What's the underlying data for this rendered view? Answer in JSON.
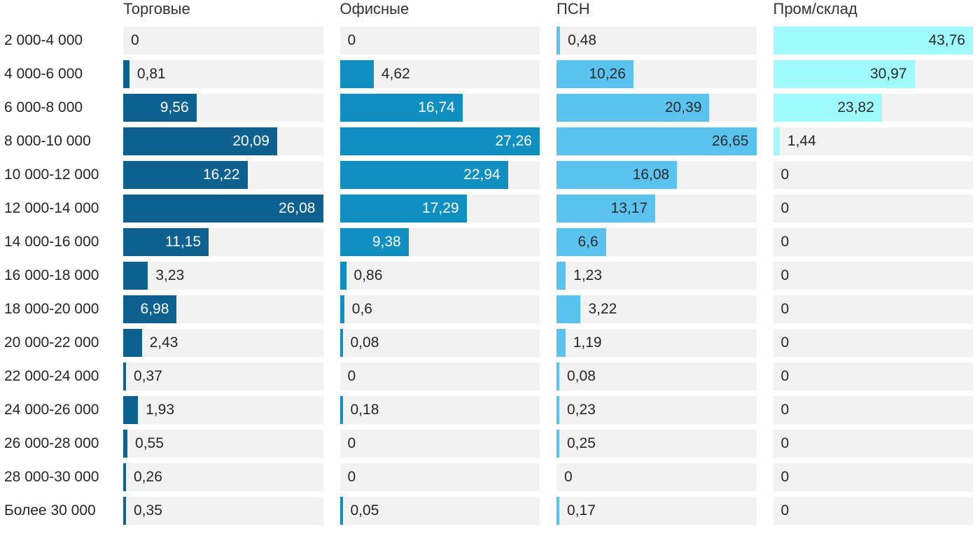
{
  "chart_data": {
    "type": "bar",
    "orientation": "horizontal",
    "scaling": "per-series-max",
    "value_decimal_separator": ",",
    "track_color": "#f2f2f2",
    "categories": [
      "2 000-4 000",
      "4 000-6 000",
      "6 000-8 000",
      "8 000-10 000",
      "10 000-12 000",
      "12 000-14 000",
      "14 000-16 000",
      "16 000-18 000",
      "18 000-20 000",
      "20 000-22 000",
      "22 000-24 000",
      "24 000-26 000",
      "26 000-28 000",
      "28 000-30 000",
      "Более 30 000"
    ],
    "series": [
      {
        "name": "Торговые",
        "bar_color": "#0e6290",
        "inside_label_color": "#ffffff",
        "axis_max": 26.08,
        "values": [
          0,
          0.81,
          9.56,
          20.09,
          16.22,
          26.08,
          11.15,
          3.23,
          6.98,
          2.43,
          0.37,
          1.93,
          0.55,
          0.26,
          0.35
        ]
      },
      {
        "name": "Офисные",
        "bar_color": "#1090c0",
        "inside_label_color": "#ffffff",
        "axis_max": 27.26,
        "values": [
          0,
          4.62,
          16.74,
          27.26,
          22.94,
          17.29,
          9.38,
          0.86,
          0.6,
          0.08,
          0,
          0.18,
          0,
          0,
          0.05
        ]
      },
      {
        "name": "ПСН",
        "bar_color": "#5ac3f0",
        "inside_label_color": "#2b2b2b",
        "axis_max": 26.65,
        "values": [
          0.48,
          10.26,
          20.39,
          26.65,
          16.08,
          13.17,
          6.6,
          1.23,
          3.22,
          1.19,
          0.08,
          0.23,
          0.25,
          0,
          0.17
        ]
      },
      {
        "name": "Пром/склад",
        "bar_color": "#9ffbfb",
        "inside_label_color": "#2b2b2b",
        "axis_max": 43.76,
        "values": [
          43.76,
          30.97,
          23.82,
          1.44,
          0,
          0,
          0,
          0,
          0,
          0,
          0,
          0,
          0,
          0,
          0
        ]
      }
    ]
  },
  "styles": {
    "category_label_color": "#262626",
    "header_color": "#333333",
    "background_color": "#ffffff"
  }
}
